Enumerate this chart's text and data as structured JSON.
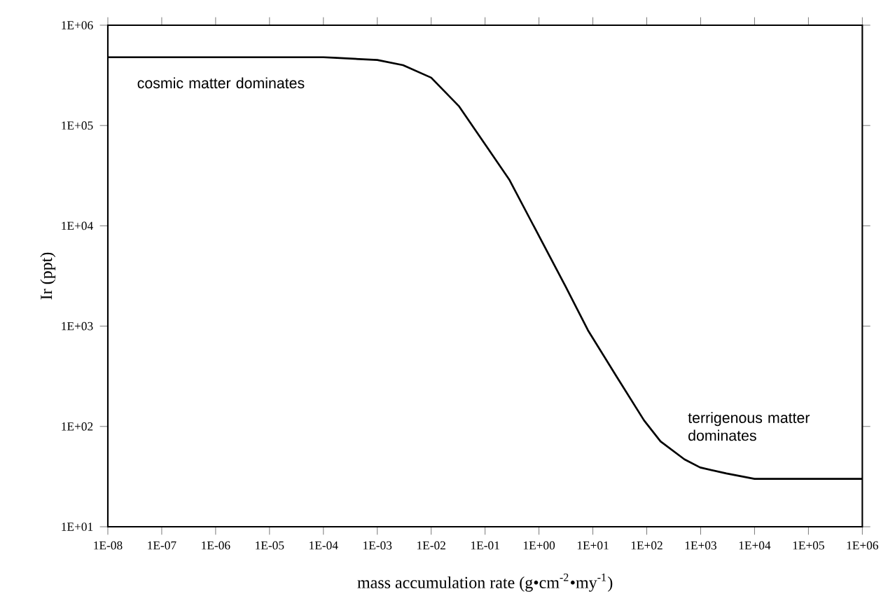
{
  "chart_data": {
    "type": "line",
    "xlabel": "mass accumulation rate (g•cm$^{-2}$•my$^{-1}$)",
    "ylabel": "Ir (ppt)",
    "log": "xy",
    "grid": false,
    "marker": "none",
    "line_style": "solid",
    "xlim": [
      1e-08,
      1000000.0
    ],
    "ylim": [
      10,
      1000000.0
    ],
    "xticks": [
      {
        "value": 1e-08,
        "label": "1E-08"
      },
      {
        "value": 1e-07,
        "label": "1E-07"
      },
      {
        "value": 1e-06,
        "label": "1E-06"
      },
      {
        "value": 1e-05,
        "label": "1E-05"
      },
      {
        "value": 0.0001,
        "label": "1E-04"
      },
      {
        "value": 0.001,
        "label": "1E-03"
      },
      {
        "value": 0.01,
        "label": "1E-02"
      },
      {
        "value": 0.1,
        "label": "1E-01"
      },
      {
        "value": 1,
        "label": "1E+00"
      },
      {
        "value": 10,
        "label": "1E+01"
      },
      {
        "value": 100,
        "label": "1E+02"
      },
      {
        "value": 1000,
        "label": "1E+03"
      },
      {
        "value": 10000,
        "label": "1E+04"
      },
      {
        "value": 100000,
        "label": "1E+05"
      },
      {
        "value": 1000000,
        "label": "1E+06"
      }
    ],
    "yticks": [
      {
        "value": 10,
        "label": "1E+01"
      },
      {
        "value": 100,
        "label": "1E+02"
      },
      {
        "value": 1000,
        "label": "1E+03"
      },
      {
        "value": 10000,
        "label": "1E+04"
      },
      {
        "value": 100000,
        "label": "1E+05"
      },
      {
        "value": 1000000,
        "label": "1E+06"
      }
    ],
    "annotations": [
      "cosmic matter dominates",
      "terrigenous matter dominates"
    ],
    "series": [
      {
        "color": "#000000",
        "x": [
          1e-08,
          1e-06,
          0.0001,
          0.001,
          0.003,
          0.01,
          0.033,
          0.1,
          0.28,
          3.1,
          8.1,
          27,
          89,
          180,
          500,
          980,
          3000,
          10000,
          100000,
          1000000
        ],
        "values": [
          480000,
          480000,
          480000,
          450000,
          400000,
          300000,
          155000,
          65000,
          29000,
          2500,
          910,
          320,
          115,
          71,
          47,
          39,
          34,
          30,
          30,
          30
        ]
      }
    ]
  }
}
